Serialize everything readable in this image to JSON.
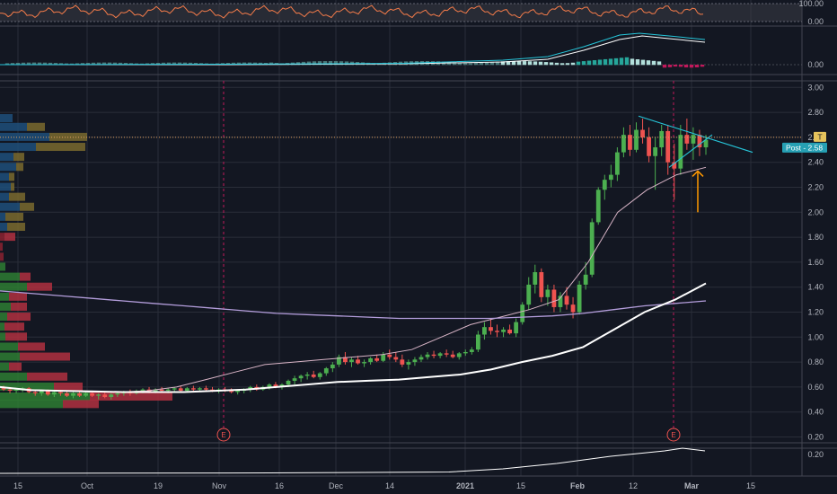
{
  "chart_data": {
    "type": "candlestick",
    "x_ticks": [
      "15",
      "Oct",
      "19",
      "Nov",
      "16",
      "Dec",
      "14",
      "2021",
      "15",
      "Feb",
      "12",
      "Mar",
      "15"
    ],
    "y_ticks": [
      "3.00",
      "2.80",
      "2.60",
      "2.40",
      "2.20",
      "2.00",
      "1.80",
      "1.60",
      "1.40",
      "1.20",
      "1.00",
      "0.80",
      "0.60",
      "0.40",
      "0.20"
    ],
    "ylim": [
      0.1,
      3.1
    ],
    "last_price": 2.58,
    "price_tags": [
      {
        "label": "T",
        "color": "#e6c35c",
        "value": 2.6
      },
      {
        "label": "Post - 2.58",
        "color": "#26a0b4",
        "value": 2.55
      }
    ],
    "earnings_markers": [
      "E",
      "E"
    ],
    "indicator_panes": [
      {
        "name": "oscillator",
        "y_ticks": [
          "100.00",
          "0.00"
        ],
        "line_color": "#f57c4a"
      },
      {
        "name": "macd",
        "y_ticks": [
          "0.00"
        ],
        "line_colors": [
          "#26c6da",
          "#ffffff"
        ]
      },
      {
        "name": "lower",
        "y_ticks": [
          "0.20"
        ]
      }
    ],
    "candles": [
      [
        0.6,
        0.61,
        0.57,
        0.58
      ],
      [
        0.58,
        0.6,
        0.55,
        0.57
      ],
      [
        0.57,
        0.59,
        0.55,
        0.58
      ],
      [
        0.58,
        0.6,
        0.56,
        0.59
      ],
      [
        0.59,
        0.6,
        0.55,
        0.56
      ],
      [
        0.56,
        0.58,
        0.53,
        0.55
      ],
      [
        0.55,
        0.58,
        0.53,
        0.57
      ],
      [
        0.57,
        0.58,
        0.53,
        0.54
      ],
      [
        0.54,
        0.57,
        0.52,
        0.56
      ],
      [
        0.56,
        0.57,
        0.53,
        0.55
      ],
      [
        0.55,
        0.57,
        0.52,
        0.53
      ],
      [
        0.53,
        0.56,
        0.51,
        0.55
      ],
      [
        0.55,
        0.57,
        0.52,
        0.53
      ],
      [
        0.53,
        0.56,
        0.52,
        0.55
      ],
      [
        0.55,
        0.56,
        0.52,
        0.53
      ],
      [
        0.53,
        0.55,
        0.5,
        0.54
      ],
      [
        0.54,
        0.56,
        0.51,
        0.52
      ],
      [
        0.52,
        0.55,
        0.5,
        0.54
      ],
      [
        0.54,
        0.56,
        0.52,
        0.55
      ],
      [
        0.55,
        0.57,
        0.53,
        0.56
      ],
      [
        0.56,
        0.58,
        0.53,
        0.55
      ],
      [
        0.55,
        0.58,
        0.54,
        0.57
      ],
      [
        0.57,
        0.59,
        0.55,
        0.58
      ],
      [
        0.58,
        0.6,
        0.55,
        0.56
      ],
      [
        0.56,
        0.59,
        0.55,
        0.58
      ],
      [
        0.58,
        0.6,
        0.56,
        0.57
      ],
      [
        0.57,
        0.59,
        0.55,
        0.58
      ],
      [
        0.58,
        0.6,
        0.56,
        0.59
      ],
      [
        0.59,
        0.61,
        0.56,
        0.57
      ],
      [
        0.57,
        0.6,
        0.56,
        0.59
      ],
      [
        0.59,
        0.61,
        0.57,
        0.58
      ],
      [
        0.58,
        0.6,
        0.56,
        0.59
      ],
      [
        0.59,
        0.61,
        0.57,
        0.58
      ],
      [
        0.58,
        0.6,
        0.56,
        0.57
      ],
      [
        0.57,
        0.59,
        0.55,
        0.58
      ],
      [
        0.58,
        0.6,
        0.56,
        0.57
      ],
      [
        0.57,
        0.59,
        0.55,
        0.56
      ],
      [
        0.56,
        0.58,
        0.54,
        0.57
      ],
      [
        0.57,
        0.59,
        0.55,
        0.58
      ],
      [
        0.58,
        0.61,
        0.56,
        0.6
      ],
      [
        0.6,
        0.62,
        0.57,
        0.58
      ],
      [
        0.58,
        0.61,
        0.57,
        0.6
      ],
      [
        0.6,
        0.63,
        0.58,
        0.62
      ],
      [
        0.62,
        0.64,
        0.59,
        0.6
      ],
      [
        0.6,
        0.63,
        0.58,
        0.62
      ],
      [
        0.62,
        0.66,
        0.6,
        0.65
      ],
      [
        0.65,
        0.69,
        0.62,
        0.67
      ],
      [
        0.67,
        0.7,
        0.64,
        0.69
      ],
      [
        0.69,
        0.72,
        0.66,
        0.7
      ],
      [
        0.7,
        0.73,
        0.67,
        0.68
      ],
      [
        0.68,
        0.72,
        0.66,
        0.71
      ],
      [
        0.71,
        0.76,
        0.69,
        0.75
      ],
      [
        0.75,
        0.8,
        0.72,
        0.78
      ],
      [
        0.78,
        0.86,
        0.76,
        0.84
      ],
      [
        0.84,
        0.88,
        0.78,
        0.8
      ],
      [
        0.8,
        0.84,
        0.76,
        0.82
      ],
      [
        0.82,
        0.85,
        0.78,
        0.79
      ],
      [
        0.79,
        0.82,
        0.76,
        0.8
      ],
      [
        0.8,
        0.84,
        0.78,
        0.83
      ],
      [
        0.83,
        0.86,
        0.8,
        0.81
      ],
      [
        0.81,
        0.88,
        0.8,
        0.86
      ],
      [
        0.86,
        0.9,
        0.82,
        0.84
      ],
      [
        0.84,
        0.88,
        0.8,
        0.82
      ],
      [
        0.82,
        0.86,
        0.76,
        0.78
      ],
      [
        0.78,
        0.82,
        0.74,
        0.8
      ],
      [
        0.8,
        0.84,
        0.77,
        0.82
      ],
      [
        0.82,
        0.86,
        0.8,
        0.84
      ],
      [
        0.84,
        0.88,
        0.82,
        0.86
      ],
      [
        0.86,
        0.89,
        0.83,
        0.85
      ],
      [
        0.85,
        0.88,
        0.83,
        0.87
      ],
      [
        0.87,
        0.9,
        0.84,
        0.86
      ],
      [
        0.86,
        0.89,
        0.83,
        0.84
      ],
      [
        0.84,
        0.88,
        0.82,
        0.87
      ],
      [
        0.87,
        0.9,
        0.85,
        0.88
      ],
      [
        0.88,
        0.92,
        0.86,
        0.9
      ],
      [
        0.9,
        1.05,
        0.88,
        1.02
      ],
      [
        1.02,
        1.12,
        0.98,
        1.08
      ],
      [
        1.08,
        1.15,
        1.02,
        1.05
      ],
      [
        1.05,
        1.1,
        1.0,
        1.04
      ],
      [
        1.04,
        1.08,
        1.0,
        1.06
      ],
      [
        1.06,
        1.1,
        1.02,
        1.03
      ],
      [
        1.03,
        1.15,
        1.0,
        1.12
      ],
      [
        1.12,
        1.28,
        1.1,
        1.26
      ],
      [
        1.26,
        1.48,
        1.22,
        1.42
      ],
      [
        1.42,
        1.58,
        1.35,
        1.52
      ],
      [
        1.52,
        1.55,
        1.28,
        1.32
      ],
      [
        1.32,
        1.42,
        1.25,
        1.38
      ],
      [
        1.38,
        1.42,
        1.2,
        1.24
      ],
      [
        1.24,
        1.36,
        1.2,
        1.33
      ],
      [
        1.33,
        1.4,
        1.22,
        1.26
      ],
      [
        1.26,
        1.32,
        1.15,
        1.2
      ],
      [
        1.2,
        1.45,
        1.18,
        1.42
      ],
      [
        1.42,
        1.6,
        1.38,
        1.5
      ],
      [
        1.5,
        1.95,
        1.48,
        1.92
      ],
      [
        1.92,
        2.2,
        1.9,
        2.18
      ],
      [
        2.18,
        2.3,
        2.1,
        2.26
      ],
      [
        2.26,
        2.38,
        2.2,
        2.3
      ],
      [
        2.3,
        2.52,
        2.25,
        2.48
      ],
      [
        2.48,
        2.68,
        2.44,
        2.62
      ],
      [
        2.62,
        2.7,
        2.45,
        2.5
      ],
      [
        2.5,
        2.72,
        2.48,
        2.66
      ],
      [
        2.66,
        2.75,
        2.55,
        2.6
      ],
      [
        2.6,
        2.68,
        2.4,
        2.45
      ],
      [
        2.45,
        2.6,
        2.18,
        2.52
      ],
      [
        2.52,
        2.7,
        2.45,
        2.65
      ],
      [
        2.65,
        2.7,
        2.3,
        2.4
      ],
      [
        2.4,
        2.55,
        2.1,
        2.35
      ],
      [
        2.35,
        2.7,
        2.3,
        2.62
      ],
      [
        2.62,
        2.75,
        2.5,
        2.55
      ],
      [
        2.55,
        2.68,
        2.42,
        2.62
      ],
      [
        2.62,
        2.66,
        2.45,
        2.52
      ],
      [
        2.52,
        2.62,
        2.46,
        2.58
      ]
    ],
    "ma_slow": [
      0.6,
      0.575,
      0.57,
      0.565,
      0.56,
      0.56,
      0.56,
      0.57,
      0.58,
      0.6,
      0.62,
      0.64,
      0.65,
      0.66,
      0.68,
      0.7,
      0.74,
      0.8,
      0.85,
      0.92,
      1.06,
      1.2,
      1.3,
      1.43
    ],
    "ma_long": [
      1.37,
      1.35,
      1.33,
      1.31,
      1.29,
      1.27,
      1.25,
      1.23,
      1.21,
      1.19,
      1.18,
      1.17,
      1.16,
      1.15,
      1.15,
      1.15,
      1.15,
      1.16,
      1.17,
      1.19,
      1.22,
      1.25,
      1.27,
      1.29
    ]
  }
}
